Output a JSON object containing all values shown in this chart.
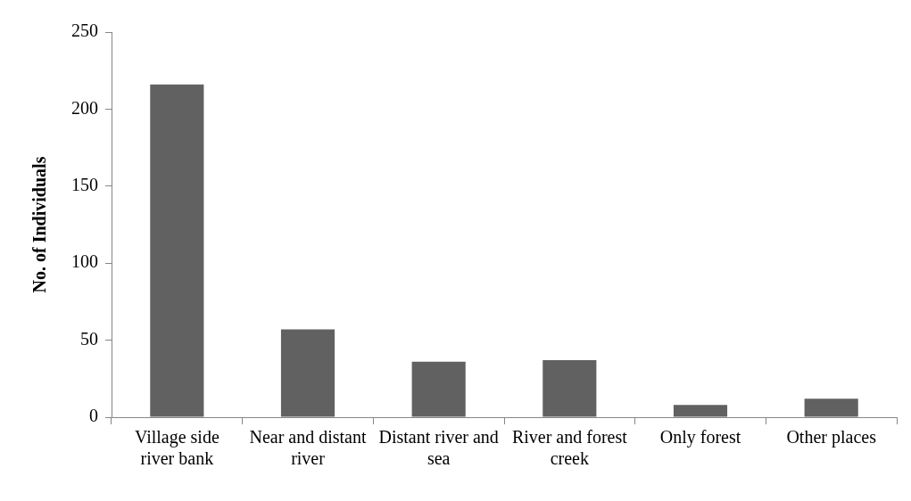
{
  "chart_data": {
    "type": "bar",
    "ylabel": "No. of Individuals",
    "categories": [
      "Village side river bank",
      "Near and distant river",
      "Distant river and sea",
      "River and forest creek",
      "Only forest",
      "Other places"
    ],
    "values": [
      216,
      57,
      36,
      37,
      8,
      12
    ],
    "color": "#616161",
    "ylim": [
      0,
      250
    ],
    "yticks": [
      0,
      50,
      100,
      150,
      200,
      250
    ],
    "grid": false,
    "legend": false
  }
}
